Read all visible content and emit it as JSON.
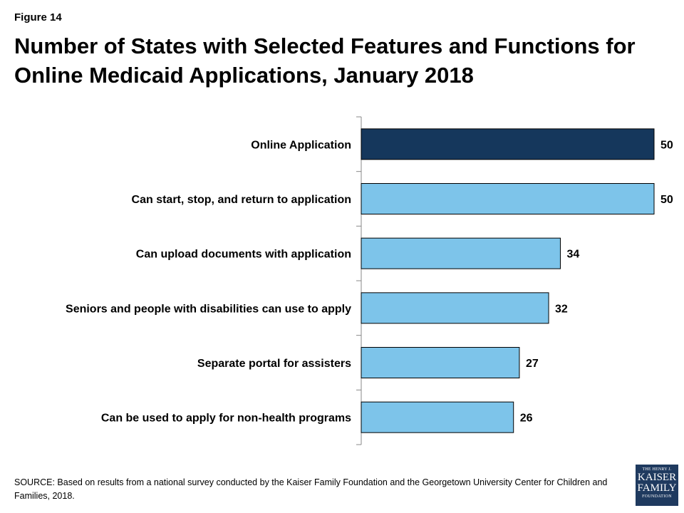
{
  "figure_label": "Figure 14",
  "title": "Number of States with Selected Features and Functions for Online Medicaid Applications, January 2018",
  "chart_data": {
    "type": "bar",
    "orientation": "horizontal",
    "categories": [
      "Online Application",
      "Can start, stop, and return to application",
      "Can upload documents with application",
      "Seniors and people with disabilities can use to apply",
      "Separate portal for assisters",
      "Can be used to apply for non-health programs"
    ],
    "values": [
      50,
      50,
      34,
      32,
      27,
      26
    ],
    "colors": [
      "#15375c",
      "#7dc4ea",
      "#7dc4ea",
      "#7dc4ea",
      "#7dc4ea",
      "#7dc4ea"
    ],
    "xlim": [
      0,
      50
    ],
    "grid": false,
    "legend": false
  },
  "source": "SOURCE: Based on results from a national survey conducted by the Kaiser Family Foundation and the Georgetown University Center for Children and Families, 2018.",
  "logo": {
    "line1": "THE HENRY J.",
    "line2": "KAISER",
    "line3": "FAMILY",
    "line4": "FOUNDATION"
  }
}
